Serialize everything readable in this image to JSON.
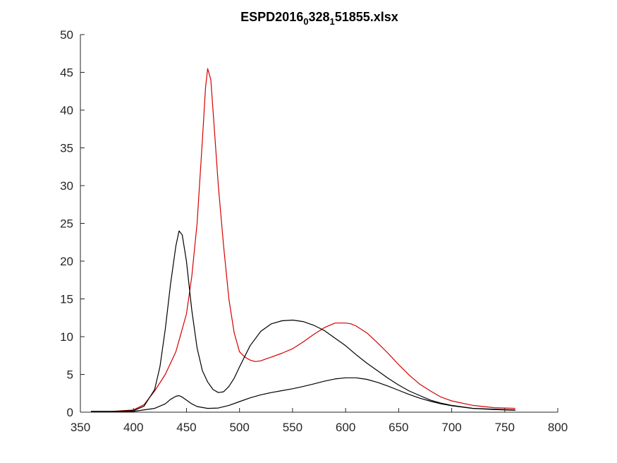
{
  "chart_data": {
    "type": "line",
    "title": {
      "parts": [
        {
          "text": "ESPD2016",
          "sub": false
        },
        {
          "text": "0",
          "sub": true
        },
        {
          "text": "328",
          "sub": false
        },
        {
          "text": "1",
          "sub": true
        },
        {
          "text": "51855.xlsx",
          "sub": false
        }
      ]
    },
    "xlabel": "",
    "ylabel": "",
    "xlim": [
      350,
      800
    ],
    "ylim": [
      0,
      50
    ],
    "xticks": [
      "350",
      "400",
      "450",
      "500",
      "550",
      "600",
      "650",
      "700",
      "750",
      "800"
    ],
    "yticks": [
      "0",
      "5",
      "10",
      "15",
      "20",
      "25",
      "30",
      "35",
      "40",
      "45",
      "50"
    ],
    "grid": false,
    "legend": "none",
    "series": [
      {
        "color": "#d40000",
        "x": [
          360,
          380,
          400,
          410,
          420,
          430,
          440,
          450,
          455,
          460,
          465,
          468,
          470,
          473,
          476,
          480,
          485,
          490,
          495,
          500,
          505,
          510,
          515,
          520,
          530,
          540,
          550,
          560,
          570,
          580,
          590,
          600,
          605,
          610,
          620,
          630,
          640,
          650,
          660,
          670,
          680,
          690,
          700,
          720,
          740,
          760
        ],
        "y": [
          0.1,
          0.1,
          0.3,
          1.0,
          2.8,
          5.0,
          8.0,
          13.0,
          18.0,
          25.0,
          36.0,
          43.0,
          45.5,
          44.0,
          38.0,
          30.0,
          22.0,
          15.0,
          10.5,
          8.0,
          7.3,
          6.9,
          6.7,
          6.8,
          7.3,
          7.8,
          8.4,
          9.3,
          10.3,
          11.2,
          11.8,
          11.8,
          11.7,
          11.4,
          10.5,
          9.2,
          7.8,
          6.3,
          4.9,
          3.7,
          2.8,
          2.0,
          1.5,
          0.9,
          0.6,
          0.5
        ]
      },
      {
        "color": "#000000",
        "x": [
          360,
          380,
          400,
          410,
          420,
          425,
          430,
          435,
          440,
          443,
          446,
          450,
          455,
          460,
          465,
          470,
          475,
          480,
          485,
          490,
          495,
          500,
          510,
          520,
          530,
          540,
          550,
          560,
          570,
          580,
          590,
          600,
          610,
          620,
          630,
          640,
          650,
          660,
          670,
          680,
          690,
          700,
          720,
          740,
          760
        ],
        "y": [
          0.1,
          0.1,
          0.2,
          0.8,
          3.0,
          6.0,
          11.0,
          17.0,
          22.0,
          24.0,
          23.5,
          20.0,
          13.5,
          8.5,
          5.5,
          4.0,
          3.0,
          2.6,
          2.7,
          3.4,
          4.5,
          6.0,
          8.8,
          10.7,
          11.7,
          12.1,
          12.2,
          12.0,
          11.5,
          10.8,
          9.8,
          8.8,
          7.6,
          6.5,
          5.5,
          4.5,
          3.6,
          2.8,
          2.2,
          1.6,
          1.2,
          0.9,
          0.5,
          0.4,
          0.3
        ]
      },
      {
        "color": "#000000",
        "x": [
          360,
          380,
          400,
          420,
          430,
          435,
          440,
          443,
          446,
          450,
          455,
          460,
          470,
          480,
          490,
          500,
          510,
          520,
          530,
          540,
          550,
          560,
          570,
          580,
          590,
          600,
          610,
          620,
          630,
          640,
          650,
          660,
          670,
          680,
          690,
          700,
          720,
          740,
          760
        ],
        "y": [
          0.05,
          0.05,
          0.1,
          0.5,
          1.1,
          1.7,
          2.1,
          2.2,
          2.0,
          1.6,
          1.1,
          0.75,
          0.5,
          0.55,
          0.9,
          1.4,
          1.9,
          2.3,
          2.6,
          2.85,
          3.1,
          3.4,
          3.75,
          4.1,
          4.4,
          4.55,
          4.55,
          4.35,
          3.95,
          3.45,
          2.9,
          2.35,
          1.85,
          1.45,
          1.1,
          0.85,
          0.5,
          0.35,
          0.25
        ]
      }
    ]
  }
}
